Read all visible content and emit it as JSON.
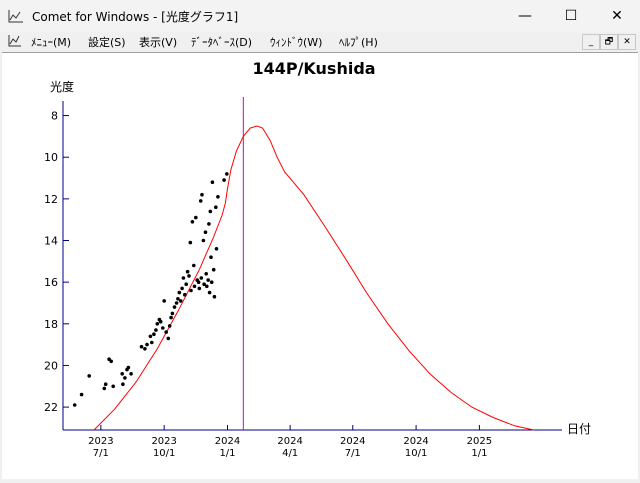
{
  "window": {
    "title": "Comet for Windows - [光度グラフ1]",
    "minimize_glyph": "—",
    "maximize_glyph": "☐",
    "close_glyph": "✕"
  },
  "menu": {
    "items": [
      {
        "label": "ﾒﾆｭｰ(M)"
      },
      {
        "label": "設定(S)"
      },
      {
        "label": "表示(V)"
      },
      {
        "label": "ﾃﾞｰﾀﾍﾞｰｽ(D)"
      },
      {
        "label": "ｳｨﾝﾄﾞｳ(W)"
      },
      {
        "label": "ﾍﾙﾌﾟ(H)"
      }
    ],
    "mdi_minimize": "_",
    "mdi_restore": "🗗",
    "mdi_close": "✕"
  },
  "chart_data": {
    "type": "scatter",
    "title": "144P/Kushida",
    "ylabel": "光度",
    "xlabel": "日付",
    "y_ticks": [
      8,
      10,
      12,
      14,
      16,
      18,
      20,
      22
    ],
    "ylim": [
      23.1,
      7.3
    ],
    "y_inverted": true,
    "x_ticks": [
      {
        "date": "2023-07-01",
        "year": "2023",
        "md": "7/1"
      },
      {
        "date": "2023-10-01",
        "year": "2023",
        "md": "10/1"
      },
      {
        "date": "2024-01-01",
        "year": "2024",
        "md": "1/1"
      },
      {
        "date": "2024-04-01",
        "year": "2024",
        "md": "4/1"
      },
      {
        "date": "2024-07-01",
        "year": "2024",
        "md": "7/1"
      },
      {
        "date": "2024-10-01",
        "year": "2024",
        "md": "10/1"
      },
      {
        "date": "2025-01-01",
        "year": "2025",
        "md": "1/1"
      }
    ],
    "xlim": [
      "2023-05-07",
      "2025-05-01"
    ],
    "current_date_marker": "2024-01-24",
    "colors": {
      "curve": "#ff0000",
      "marker_line": "#cc00cc",
      "axes": "#000080",
      "points": "#000000"
    },
    "series": [
      {
        "kind": "prediction_curve",
        "points": [
          [
            "2023-06-21",
            23.2
          ],
          [
            "2023-07-21",
            22.1
          ],
          [
            "2023-08-21",
            20.8
          ],
          [
            "2023-09-21",
            19.2
          ],
          [
            "2023-10-21",
            17.4
          ],
          [
            "2023-11-21",
            15.4
          ],
          [
            "2023-12-11",
            13.9
          ],
          [
            "2023-12-24",
            12.8
          ],
          [
            "2023-12-29",
            12.2
          ],
          [
            "2024-01-01",
            11.5
          ],
          [
            "2024-01-06",
            10.6
          ],
          [
            "2024-01-14",
            9.7
          ],
          [
            "2024-01-24",
            9.0
          ],
          [
            "2024-02-03",
            8.6
          ],
          [
            "2024-02-13",
            8.5
          ],
          [
            "2024-02-21",
            8.6
          ],
          [
            "2024-03-03",
            9.2
          ],
          [
            "2024-03-13",
            10.0
          ],
          [
            "2024-03-24",
            10.7
          ],
          [
            "2024-04-21",
            11.8
          ],
          [
            "2024-05-21",
            13.3
          ],
          [
            "2024-06-21",
            14.9
          ],
          [
            "2024-07-21",
            16.5
          ],
          [
            "2024-08-21",
            18.0
          ],
          [
            "2024-09-21",
            19.3
          ],
          [
            "2024-10-21",
            20.4
          ],
          [
            "2024-11-21",
            21.3
          ],
          [
            "2024-12-21",
            22.0
          ],
          [
            "2025-01-21",
            22.5
          ],
          [
            "2025-02-21",
            22.9
          ],
          [
            "2025-03-21",
            23.1
          ]
        ]
      },
      {
        "kind": "observations",
        "points": [
          [
            "2023-05-24",
            21.9
          ],
          [
            "2023-06-03",
            21.4
          ],
          [
            "2023-06-14",
            20.5
          ],
          [
            "2023-07-06",
            21.1
          ],
          [
            "2023-07-08",
            20.9
          ],
          [
            "2023-07-13",
            19.7
          ],
          [
            "2023-07-16",
            19.8
          ],
          [
            "2023-07-19",
            21.0
          ],
          [
            "2023-08-02",
            20.9
          ],
          [
            "2023-08-05",
            20.6
          ],
          [
            "2023-08-08",
            20.2
          ],
          [
            "2023-08-01",
            20.4
          ],
          [
            "2023-08-14",
            20.4
          ],
          [
            "2023-08-10",
            20.1
          ],
          [
            "2023-08-29",
            19.1
          ],
          [
            "2023-09-03",
            19.2
          ],
          [
            "2023-09-06",
            19.0
          ],
          [
            "2023-09-11",
            18.6
          ],
          [
            "2023-09-13",
            18.9
          ],
          [
            "2023-09-16",
            18.5
          ],
          [
            "2023-09-19",
            18.3
          ],
          [
            "2023-09-21",
            18.0
          ],
          [
            "2023-09-24",
            17.8
          ],
          [
            "2023-09-26",
            17.9
          ],
          [
            "2023-09-29",
            18.2
          ],
          [
            "2023-10-01",
            16.9
          ],
          [
            "2023-10-04",
            18.4
          ],
          [
            "2023-10-07",
            18.7
          ],
          [
            "2023-10-09",
            18.1
          ],
          [
            "2023-10-11",
            17.7
          ],
          [
            "2023-10-13",
            17.5
          ],
          [
            "2023-10-16",
            17.2
          ],
          [
            "2023-10-19",
            17.0
          ],
          [
            "2023-10-21",
            16.8
          ],
          [
            "2023-10-23",
            16.5
          ],
          [
            "2023-10-25",
            16.9
          ],
          [
            "2023-10-27",
            16.3
          ],
          [
            "2023-10-29",
            15.8
          ],
          [
            "2023-10-31",
            16.6
          ],
          [
            "2023-11-02",
            16.1
          ],
          [
            "2023-11-04",
            15.5
          ],
          [
            "2023-11-06",
            15.7
          ],
          [
            "2023-11-08",
            14.1
          ],
          [
            "2023-11-09",
            16.4
          ],
          [
            "2023-11-11",
            13.1
          ],
          [
            "2023-11-13",
            15.2
          ],
          [
            "2023-11-14",
            16.2
          ],
          [
            "2023-11-16",
            12.9
          ],
          [
            "2023-11-18",
            15.9
          ],
          [
            "2023-11-20",
            16.0
          ],
          [
            "2023-11-21",
            16.3
          ],
          [
            "2023-11-23",
            12.1
          ],
          [
            "2023-11-24",
            15.8
          ],
          [
            "2023-11-25",
            11.8
          ],
          [
            "2023-11-27",
            14.0
          ],
          [
            "2023-11-28",
            16.1
          ],
          [
            "2023-11-30",
            13.6
          ],
          [
            "2023-12-01",
            15.6
          ],
          [
            "2023-12-02",
            16.2
          ],
          [
            "2023-12-04",
            15.9
          ],
          [
            "2023-12-05",
            13.2
          ],
          [
            "2023-12-06",
            16.5
          ],
          [
            "2023-12-07",
            12.6
          ],
          [
            "2023-12-08",
            14.8
          ],
          [
            "2023-12-09",
            16.0
          ],
          [
            "2023-12-10",
            11.2
          ],
          [
            "2023-12-12",
            15.4
          ],
          [
            "2023-12-13",
            16.7
          ],
          [
            "2023-12-15",
            12.4
          ],
          [
            "2023-12-16",
            14.4
          ],
          [
            "2023-12-18",
            11.9
          ],
          [
            "2023-12-27",
            11.1
          ],
          [
            "2023-12-31",
            10.8
          ]
        ]
      }
    ]
  }
}
